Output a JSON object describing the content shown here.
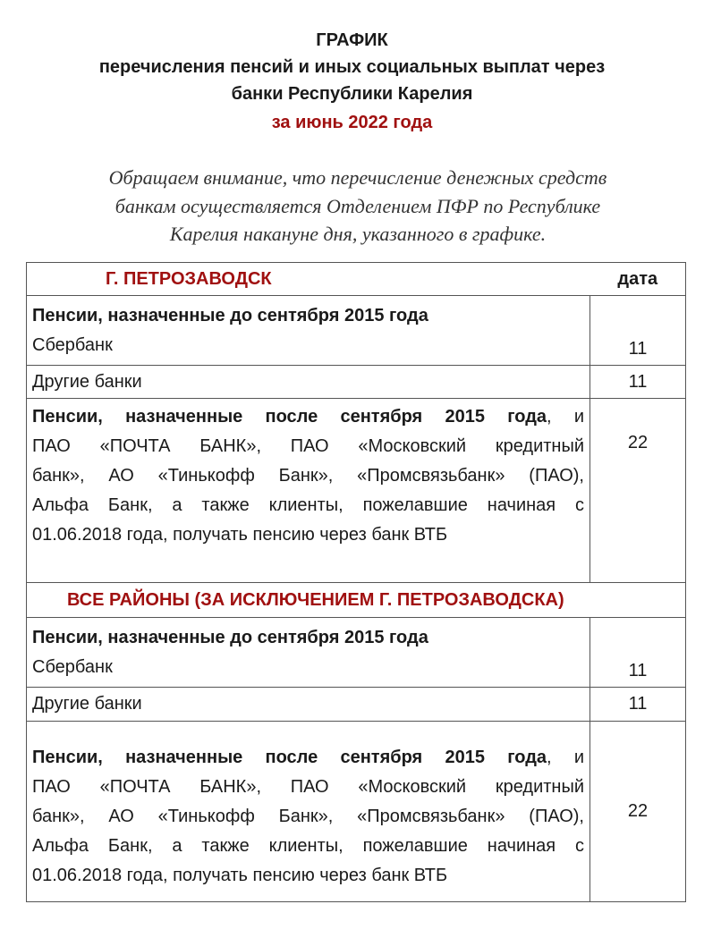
{
  "title": {
    "line1": "ГРАФИК",
    "line2": "перечисления пенсий и иных социальных выплат через",
    "line3": "банки Республики Карелия",
    "period": "за июнь 2022 года"
  },
  "intro": [
    "Обращаем внимание, что перечисление денежных средств",
    "банкам осуществляется Отделением ПФР по Республике",
    "Карелия накануне дня, указанного в графике."
  ],
  "table": {
    "date_header": "дата",
    "sections": [
      {
        "heading": "Г. ПЕТРОЗАВОДСК",
        "group_before": "Пенсии, назначенные до сентября 2015 года",
        "sberbank": {
          "label": "Сбербанк",
          "date": "11"
        },
        "other": {
          "label": "Другие банки",
          "date": "11"
        },
        "after": {
          "bold": "Пенсии, назначенные после сентября 2015 года",
          "line1_rest": ", и",
          "lines": [
            "ПАО «ПОЧТА БАНК», ПАО «Московский кредитный",
            "банк», АО «Тинькофф Банк», «Промсвязьбанк» (ПАО),",
            "Альфа Банк, а также клиенты, пожелавшие начиная с",
            "01.06.2018 года, получать пенсию через банк ВТБ"
          ],
          "date": "22"
        }
      },
      {
        "heading": "ВСЕ РАЙОНЫ (ЗА ИСКЛЮЧЕНИЕМ Г. ПЕТРОЗАВОДСКА)",
        "group_before": "Пенсии, назначенные до сентября 2015 года",
        "sberbank": {
          "label": "Сбербанк",
          "date": "11"
        },
        "other": {
          "label": "Другие банки",
          "date": "11"
        },
        "after": {
          "bold": "Пенсии, назначенные после сентября 2015 года",
          "line1_rest": ", и",
          "lines": [
            "ПАО «ПОЧТА БАНК», ПАО «Московский кредитный",
            "банк», АО «Тинькофф Банк», «Промсвязьбанк» (ПАО),",
            "Альфа Банк, а также клиенты, пожелавшие начиная с",
            "01.06.2018 года, получать пенсию через банк ВТБ"
          ],
          "date": "22"
        }
      }
    ]
  },
  "colors": {
    "accent_red": "#a01010",
    "text": "#1a1a1a",
    "border": "#555555"
  }
}
